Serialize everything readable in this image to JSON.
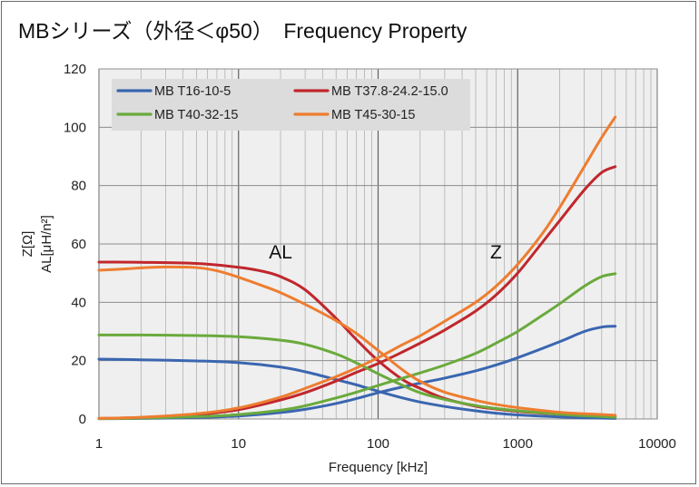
{
  "chart_data": {
    "type": "line",
    "title": "MBシリーズ（外径＜φ50）　Frequency Property",
    "xlabel": "Frequency [kHz]",
    "ylabel_lines": [
      "Z[Ω]",
      "AL[μH/n²]"
    ],
    "xscale": "log",
    "xlim": [
      1,
      10000
    ],
    "ylim": [
      0,
      120
    ],
    "xticks": [
      1,
      10,
      100,
      1000,
      10000
    ],
    "xtick_labels": [
      "1",
      "10",
      "100",
      "1000",
      "10000"
    ],
    "yticks": [
      0,
      20,
      40,
      60,
      80,
      100,
      120
    ],
    "ytick_labels": [
      "0",
      "20",
      "40",
      "60",
      "80",
      "100",
      "120"
    ],
    "grid": true,
    "legend_position": "top-left",
    "annotations": [
      {
        "text": "AL",
        "x": 20,
        "y": 55
      },
      {
        "text": "Z",
        "x": 700,
        "y": 55
      }
    ],
    "series": [
      {
        "name": "MB T16-10-5",
        "color": "#3a66b0",
        "AL": {
          "x": [
            1,
            2,
            5,
            10,
            20,
            30,
            50,
            70,
            100,
            150,
            200,
            300,
            500,
            700,
            1000,
            2000,
            3000,
            5000
          ],
          "y": [
            20.5,
            20.3,
            19.9,
            19.3,
            17.8,
            16.2,
            13.5,
            11.7,
            9.5,
            7.2,
            5.8,
            4.3,
            2.8,
            2.0,
            1.4,
            0.7,
            0.4,
            0.2
          ]
        },
        "Z": {
          "x": [
            1,
            2,
            5,
            10,
            20,
            30,
            50,
            70,
            100,
            150,
            200,
            300,
            500,
            700,
            1000,
            2000,
            3000,
            4000,
            5000
          ],
          "y": [
            0.1,
            0.2,
            0.5,
            1.0,
            2.2,
            3.3,
            5.3,
            7.0,
            9.0,
            11.0,
            12.3,
            14.0,
            16.5,
            18.5,
            21.0,
            26.5,
            30.0,
            31.5,
            31.8
          ]
        }
      },
      {
        "name": "MB T37.8-24.2-15.0",
        "color": "#c0272d",
        "AL": {
          "x": [
            1,
            2,
            5,
            10,
            15,
            20,
            30,
            50,
            70,
            100,
            150,
            200,
            300,
            500,
            700,
            1000,
            2000,
            3000,
            5000
          ],
          "y": [
            53.8,
            53.7,
            53.3,
            52.0,
            50.6,
            48.8,
            44.3,
            34.5,
            27.2,
            20.0,
            13.5,
            10.5,
            7.0,
            4.4,
            3.4,
            2.6,
            1.6,
            1.2,
            0.9
          ]
        },
        "Z": {
          "x": [
            1,
            2,
            5,
            10,
            20,
            30,
            50,
            70,
            100,
            150,
            200,
            300,
            500,
            700,
            1000,
            1500,
            2000,
            3000,
            4000,
            5000
          ],
          "y": [
            0.2,
            0.5,
            1.5,
            3.2,
            6.5,
            9.0,
            13.0,
            16.0,
            19.0,
            23.0,
            26.0,
            30.5,
            37.0,
            42.5,
            50.0,
            60.5,
            68.0,
            78.5,
            84.5,
            86.5
          ]
        }
      },
      {
        "name": "MB T40-32-15",
        "color": "#6aaa3c",
        "AL": {
          "x": [
            1,
            2,
            5,
            10,
            20,
            30,
            50,
            70,
            100,
            150,
            200,
            300,
            500,
            700,
            1000,
            2000,
            3000,
            5000
          ],
          "y": [
            28.8,
            28.8,
            28.6,
            28.2,
            27.0,
            25.6,
            22.3,
            19.2,
            15.5,
            11.5,
            9.0,
            6.7,
            4.6,
            3.6,
            2.8,
            1.6,
            1.1,
            0.6
          ]
        },
        "Z": {
          "x": [
            1,
            2,
            5,
            10,
            20,
            30,
            50,
            70,
            100,
            150,
            200,
            300,
            500,
            700,
            1000,
            1500,
            2000,
            3000,
            4000,
            5000
          ],
          "y": [
            0.1,
            0.3,
            0.8,
            1.5,
            3.0,
            4.5,
            7.2,
            9.2,
            11.5,
            14.0,
            15.8,
            18.5,
            22.5,
            26.0,
            30.0,
            35.5,
            39.5,
            45.5,
            48.8,
            49.8
          ]
        }
      },
      {
        "name": "MB T45-30-15",
        "color": "#ee7d30",
        "AL": {
          "x": [
            1,
            1.5,
            2,
            3,
            5,
            7,
            10,
            15,
            20,
            30,
            50,
            70,
            100,
            150,
            200,
            300,
            500,
            700,
            1000,
            2000,
            3000,
            5000
          ],
          "y": [
            51.0,
            51.4,
            51.8,
            52.1,
            51.9,
            50.8,
            48.6,
            45.6,
            43.3,
            39.3,
            33.7,
            29.3,
            23.5,
            16.8,
            12.9,
            9.2,
            6.4,
            5.0,
            3.9,
            2.3,
            1.8,
            1.3
          ]
        },
        "Z": {
          "x": [
            1,
            2,
            5,
            10,
            20,
            30,
            50,
            70,
            100,
            150,
            200,
            300,
            500,
            700,
            1000,
            1500,
            2000,
            3000,
            4000,
            5000
          ],
          "y": [
            0.2,
            0.6,
            1.8,
            3.8,
            7.5,
            10.5,
            14.5,
            17.5,
            21.0,
            25.5,
            28.5,
            33.5,
            40.0,
            45.5,
            53.0,
            63.5,
            72.5,
            86.5,
            96.5,
            103.5
          ]
        }
      }
    ]
  }
}
